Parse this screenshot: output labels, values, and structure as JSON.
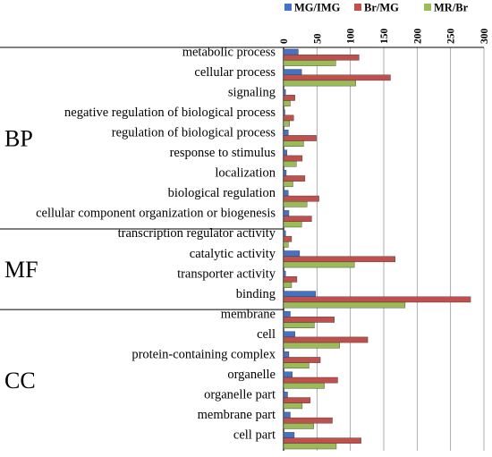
{
  "chart_data": {
    "type": "bar",
    "orientation": "horizontal",
    "title": "",
    "xlabel": "",
    "ylabel": "",
    "xlim": [
      0,
      300
    ],
    "xticks": [
      0,
      50,
      100,
      150,
      200,
      250,
      300
    ],
    "grid": true,
    "legend_position": "top-right",
    "colors": {
      "MG/IMG": "#4472C4",
      "Br/MG": "#C0504D",
      "MR/Br": "#9BBB59"
    },
    "groups": [
      {
        "label": "BP",
        "categories": [
          "metabolic process",
          "cellular process",
          "signaling",
          "negative regulation of biological process",
          "regulation of biological process",
          "response to stimulus",
          "localization",
          "biological regulation",
          "cellular component organization or biogenesis"
        ]
      },
      {
        "label": "MF",
        "categories": [
          "transcription regulator activity",
          "catalytic activity",
          "transporter activity",
          "binding"
        ]
      },
      {
        "label": "CC",
        "categories": [
          "membrane",
          "cell",
          "protein-containing complex",
          "organelle",
          "organelle part",
          "membrane part",
          "cell part"
        ]
      }
    ],
    "categories": [
      "metabolic process",
      "cellular process",
      "signaling",
      "negative regulation of biological process",
      "regulation of biological process",
      "response to stimulus",
      "localization",
      "biological regulation",
      "cellular component organization or biogenesis",
      "transcription regulator activity",
      "catalytic activity",
      "transporter activity",
      "binding",
      "membrane",
      "cell",
      "protein-containing complex",
      "organelle",
      "organelle part",
      "membrane part",
      "cell part"
    ],
    "series": [
      {
        "name": "MG/IMG",
        "values": [
          22,
          27,
          3,
          2,
          7,
          5,
          4,
          7,
          8,
          3,
          24,
          3,
          48,
          10,
          17,
          8,
          13,
          6,
          10,
          16
        ]
      },
      {
        "name": "Br/MG",
        "values": [
          113,
          160,
          17,
          15,
          49,
          28,
          32,
          53,
          42,
          12,
          167,
          20,
          280,
          76,
          126,
          55,
          81,
          40,
          73,
          116
        ]
      },
      {
        "name": "MR/Br",
        "values": [
          78,
          108,
          10,
          9,
          30,
          19,
          14,
          35,
          27,
          7,
          106,
          12,
          182,
          46,
          84,
          38,
          61,
          28,
          45,
          79
        ]
      }
    ]
  }
}
